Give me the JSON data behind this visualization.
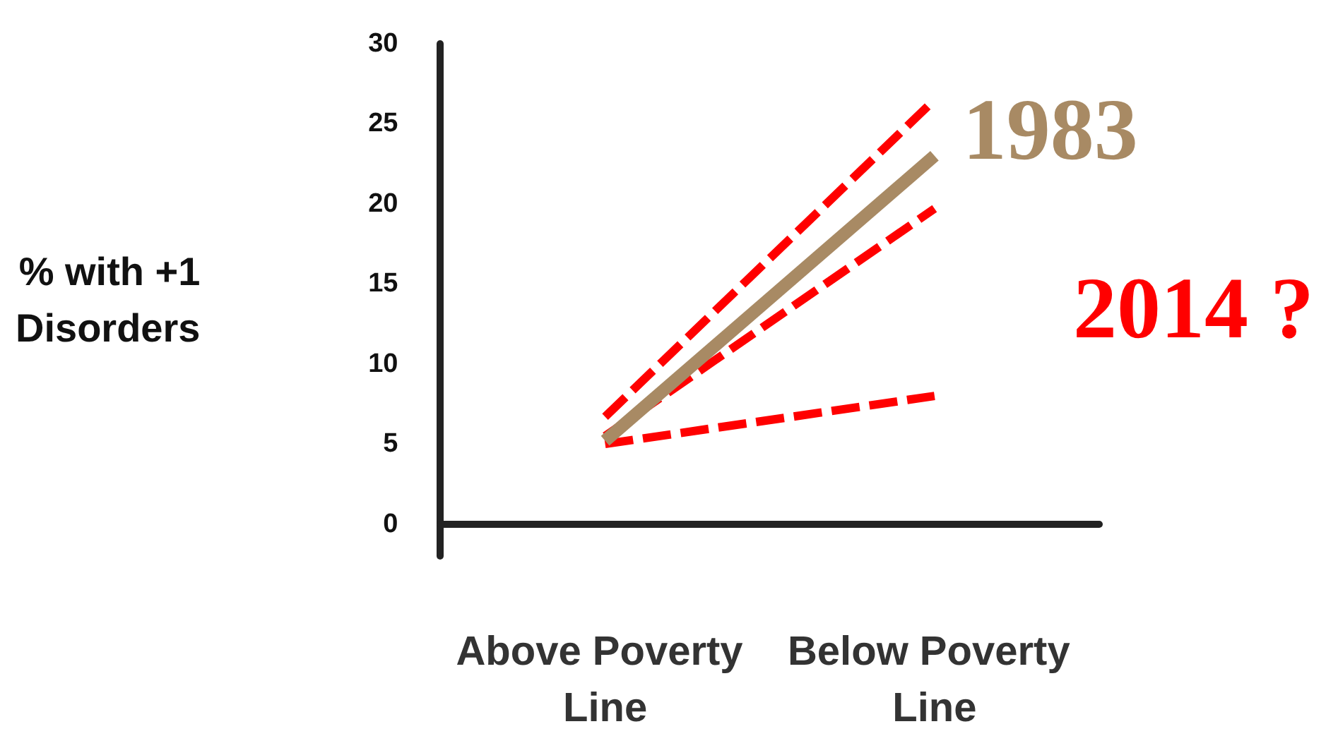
{
  "chart_data": {
    "type": "line",
    "ylabel": "% with +1\nDisorders",
    "categories": [
      "Above Poverty Line",
      "Below Poverty Line"
    ],
    "series": [
      {
        "name": "1983",
        "color": "#a88a64",
        "line_style": "solid",
        "values": [
          5.2,
          23
        ]
      },
      {
        "color": "#ff0000",
        "line_style": "dashed",
        "values": [
          6.7,
          26.5
        ]
      },
      {
        "color": "#ff0000",
        "line_style": "dashed",
        "values": [
          5.5,
          19.7
        ]
      },
      {
        "color": "#ff0000",
        "line_style": "dashed",
        "values": [
          5,
          8
        ]
      }
    ],
    "annotations": [
      "2014 ?"
    ],
    "ylim": [
      -2,
      30
    ],
    "yticks": [
      0,
      5,
      10,
      15,
      20,
      25,
      30
    ],
    "grid": false,
    "legend": false,
    "marker": "none"
  }
}
